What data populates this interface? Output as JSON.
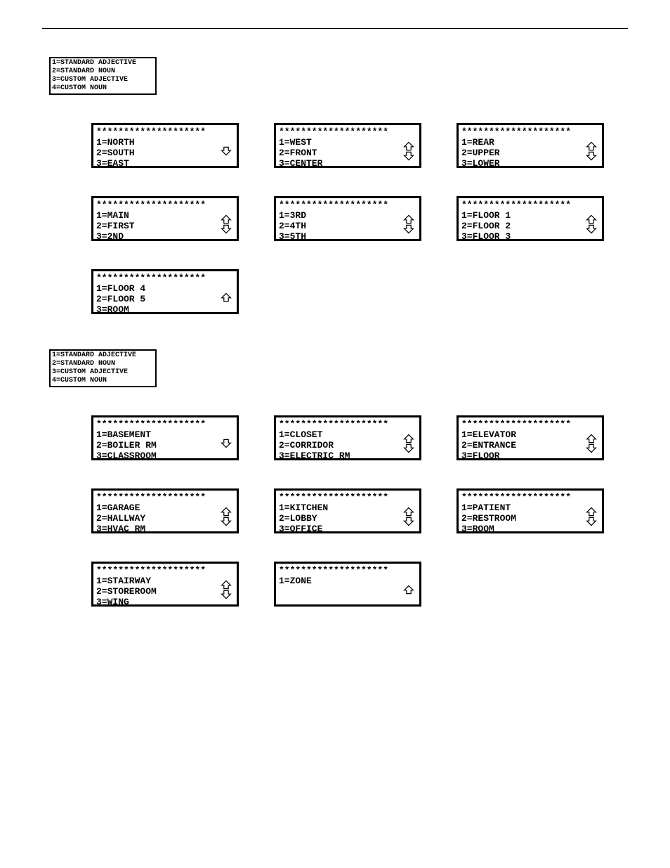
{
  "colors": {
    "fg": "#000000",
    "bg": "#ffffff"
  },
  "starHeader": "********************",
  "menuLegend": {
    "l1": "1=STANDARD ADJECTIVE",
    "l2": "2=STANDARD NOUN",
    "l3": "3=CUSTOM ADJECTIVE",
    "l4": "4=CUSTOM NOUN"
  },
  "sectionA": {
    "rows": [
      [
        {
          "lines": [
            "1=NORTH",
            "2=SOUTH",
            "3=EAST"
          ],
          "arrows": "down"
        },
        {
          "lines": [
            "1=WEST",
            "2=FRONT",
            "3=CENTER"
          ],
          "arrows": "both"
        },
        {
          "lines": [
            "1=REAR",
            "2=UPPER",
            "3=LOWER"
          ],
          "arrows": "both"
        }
      ],
      [
        {
          "lines": [
            "1=MAIN",
            "2=FIRST",
            "3=2ND"
          ],
          "arrows": "both"
        },
        {
          "lines": [
            "1=3RD",
            "2=4TH",
            "3=5TH"
          ],
          "arrows": "both"
        },
        {
          "lines": [
            "1=FLOOR 1",
            "2=FLOOR 2",
            "3=FLOOR 3"
          ],
          "arrows": "both"
        }
      ],
      [
        {
          "lines": [
            "1=FLOOR 4",
            "2=FLOOR 5",
            "3=ROOM"
          ],
          "arrows": "up"
        }
      ]
    ]
  },
  "sectionB": {
    "rows": [
      [
        {
          "lines": [
            "1=BASEMENT",
            "2=BOILER RM",
            "3=CLASSROOM"
          ],
          "arrows": "down"
        },
        {
          "lines": [
            "1=CLOSET",
            "2=CORRIDOR",
            "3=ELECTRIC RM"
          ],
          "arrows": "both"
        },
        {
          "lines": [
            "1=ELEVATOR",
            "2=ENTRANCE",
            "3=FLOOR"
          ],
          "arrows": "both"
        }
      ],
      [
        {
          "lines": [
            "1=GARAGE",
            "2=HALLWAY",
            "3=HVAC RM"
          ],
          "arrows": "both"
        },
        {
          "lines": [
            "1=KITCHEN",
            "2=LOBBY",
            "3=OFFICE"
          ],
          "arrows": "both"
        },
        {
          "lines": [
            "1=PATIENT",
            "2=RESTROOM",
            "3=ROOM"
          ],
          "arrows": "both"
        }
      ],
      [
        {
          "lines": [
            "1=STAIRWAY",
            "2=STOREROOM",
            "3=WING"
          ],
          "arrows": "both"
        },
        {
          "lines": [
            "1=ZONE",
            "",
            ""
          ],
          "arrows": "up"
        }
      ]
    ]
  }
}
